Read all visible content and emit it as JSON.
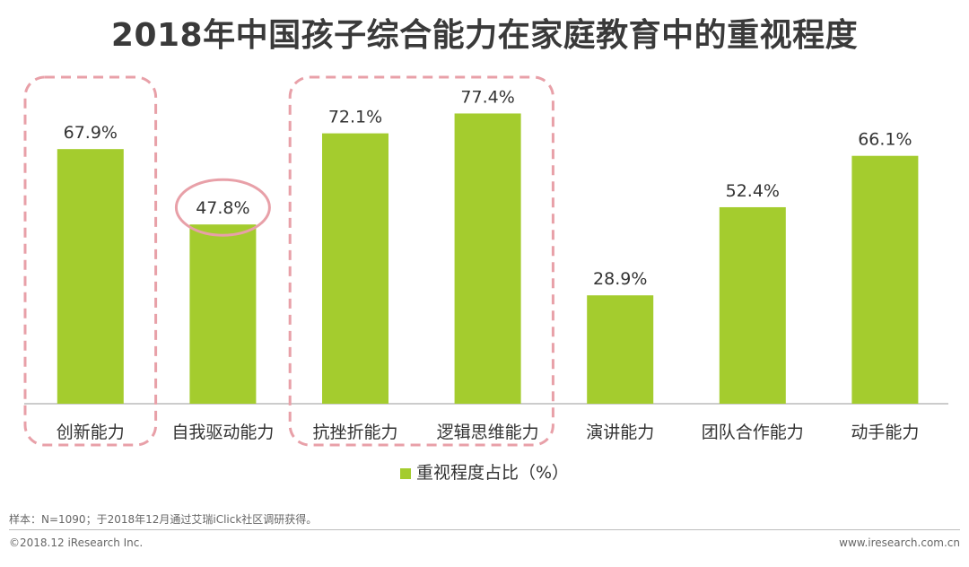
{
  "title": "2018年中国孩子综合能力在家庭教育中的重视程度",
  "chart_data": {
    "type": "bar",
    "title": "2018年中国孩子综合能力在家庭教育中的重视程度",
    "categories": [
      "创新能力",
      "自我驱动能力",
      "抗挫折能力",
      "逻辑思维能力",
      "演讲能力",
      "团队合作能力",
      "动手能力"
    ],
    "series": [
      {
        "name": "重视程度占比（%）",
        "values": [
          67.9,
          47.8,
          72.1,
          77.4,
          28.9,
          52.4,
          66.1
        ]
      }
    ],
    "data_labels": [
      "67.9%",
      "47.8%",
      "72.1%",
      "77.4%",
      "28.9%",
      "52.4%",
      "66.1%"
    ],
    "ylim": [
      0,
      100
    ],
    "grid": false,
    "legend": "bottom-center",
    "color": "#a4cc2e",
    "highlight_dashed_groups": [
      [
        0
      ],
      [
        2,
        3
      ]
    ],
    "highlight_circle_index": 1
  },
  "legend_label": "重视程度占比（%）",
  "note": "样本：N=1090；于2018年12月通过艾瑞iClick社区调研获得。",
  "footer": {
    "copyright": "©2018.12 iResearch Inc.",
    "website": "www.iresearch.com.cn"
  },
  "colors": {
    "bar": "#a4cc2e",
    "highlight": "#e8a0a8",
    "axis": "#999999"
  }
}
